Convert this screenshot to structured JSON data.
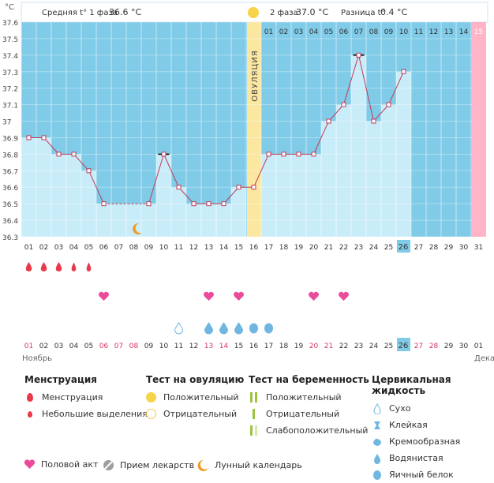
{
  "header": {
    "phase1_label": "Средняя t° 1 фаза",
    "phase1_value": "36.6 °C",
    "phase2_label": "2 фаза",
    "phase2_value": "37.0 °C",
    "diff_label": "Разница t°",
    "diff_value": "0.4 °C"
  },
  "colors": {
    "bg_blue": "#7fcbe8",
    "bar_blue": "#c9ecf9",
    "ovulation": "#fbe7a0",
    "next_cycle": "#ffb4c8",
    "line": "#c23a56",
    "weekend": "#d8345f"
  },
  "ovulation_label": "ОВУЛЯЦИЯ",
  "month_start": "Ноябрь",
  "month_next": "Дека",
  "today": "26",
  "chart_data": {
    "type": "line",
    "ylabel": "°C",
    "ylim": [
      36.3,
      37.6
    ],
    "yticks": [
      "37.6",
      "37.5",
      "37.4",
      "37.3",
      "37.2",
      "37.1",
      "37",
      "36.9",
      "36.8",
      "36.7",
      "36.6",
      "36.5",
      "36.4",
      "36.3"
    ],
    "x": [
      "01",
      "02",
      "03",
      "04",
      "05",
      "06",
      "07",
      "08",
      "09",
      "10",
      "11",
      "12",
      "13",
      "14",
      "15",
      "16",
      "17",
      "18",
      "19",
      "20",
      "21",
      "22",
      "23",
      "24",
      "25",
      "26",
      "27",
      "28",
      "29",
      "30",
      "31"
    ],
    "values": [
      36.9,
      36.9,
      36.8,
      36.8,
      36.7,
      36.5,
      null,
      null,
      36.5,
      36.8,
      36.6,
      36.5,
      36.5,
      36.5,
      36.6,
      36.6,
      36.8,
      36.8,
      36.8,
      36.8,
      37.0,
      37.1,
      37.4,
      37.0,
      37.1,
      37.3,
      null,
      null,
      null,
      null,
      null
    ],
    "ovulation_day": "16",
    "cycle_days_after_ovulation": [
      "01",
      "02",
      "03",
      "04",
      "05",
      "06",
      "07",
      "08",
      "09",
      "10",
      "11",
      "12",
      "13",
      "14",
      "15"
    ],
    "bottom_dates": [
      "01",
      "02",
      "03",
      "04",
      "05",
      "06",
      "07",
      "08",
      "09",
      "10",
      "11",
      "12",
      "13",
      "14",
      "15",
      "16",
      "17",
      "18",
      "19",
      "20",
      "21",
      "22",
      "23",
      "24",
      "25",
      "26",
      "27",
      "28",
      "29",
      "30",
      "01"
    ],
    "weekend_dates_bottom": [
      1,
      6,
      7,
      8,
      13,
      14,
      20,
      21,
      27,
      28
    ]
  },
  "legend": {
    "menstruation": {
      "title": "Менструация",
      "items": [
        "Менструация",
        "Небольшие выделения"
      ]
    },
    "ovulation_test": {
      "title": "Тест на овуляцию",
      "items": [
        "Положительный",
        "Отрицательный"
      ]
    },
    "pregnancy_test": {
      "title": "Тест на беременность",
      "items": [
        "Положительный",
        "Отрицательный",
        "Слабоположительный"
      ]
    },
    "cervical_fluid": {
      "title": "Цервикальная жидкость",
      "items": [
        "Сухо",
        "Клейкая",
        "Кремообразная",
        "Водянистая",
        "Яичный белок"
      ]
    },
    "bottom": [
      "Половой акт",
      "Прием лекарств",
      "Лунный календарь"
    ]
  }
}
